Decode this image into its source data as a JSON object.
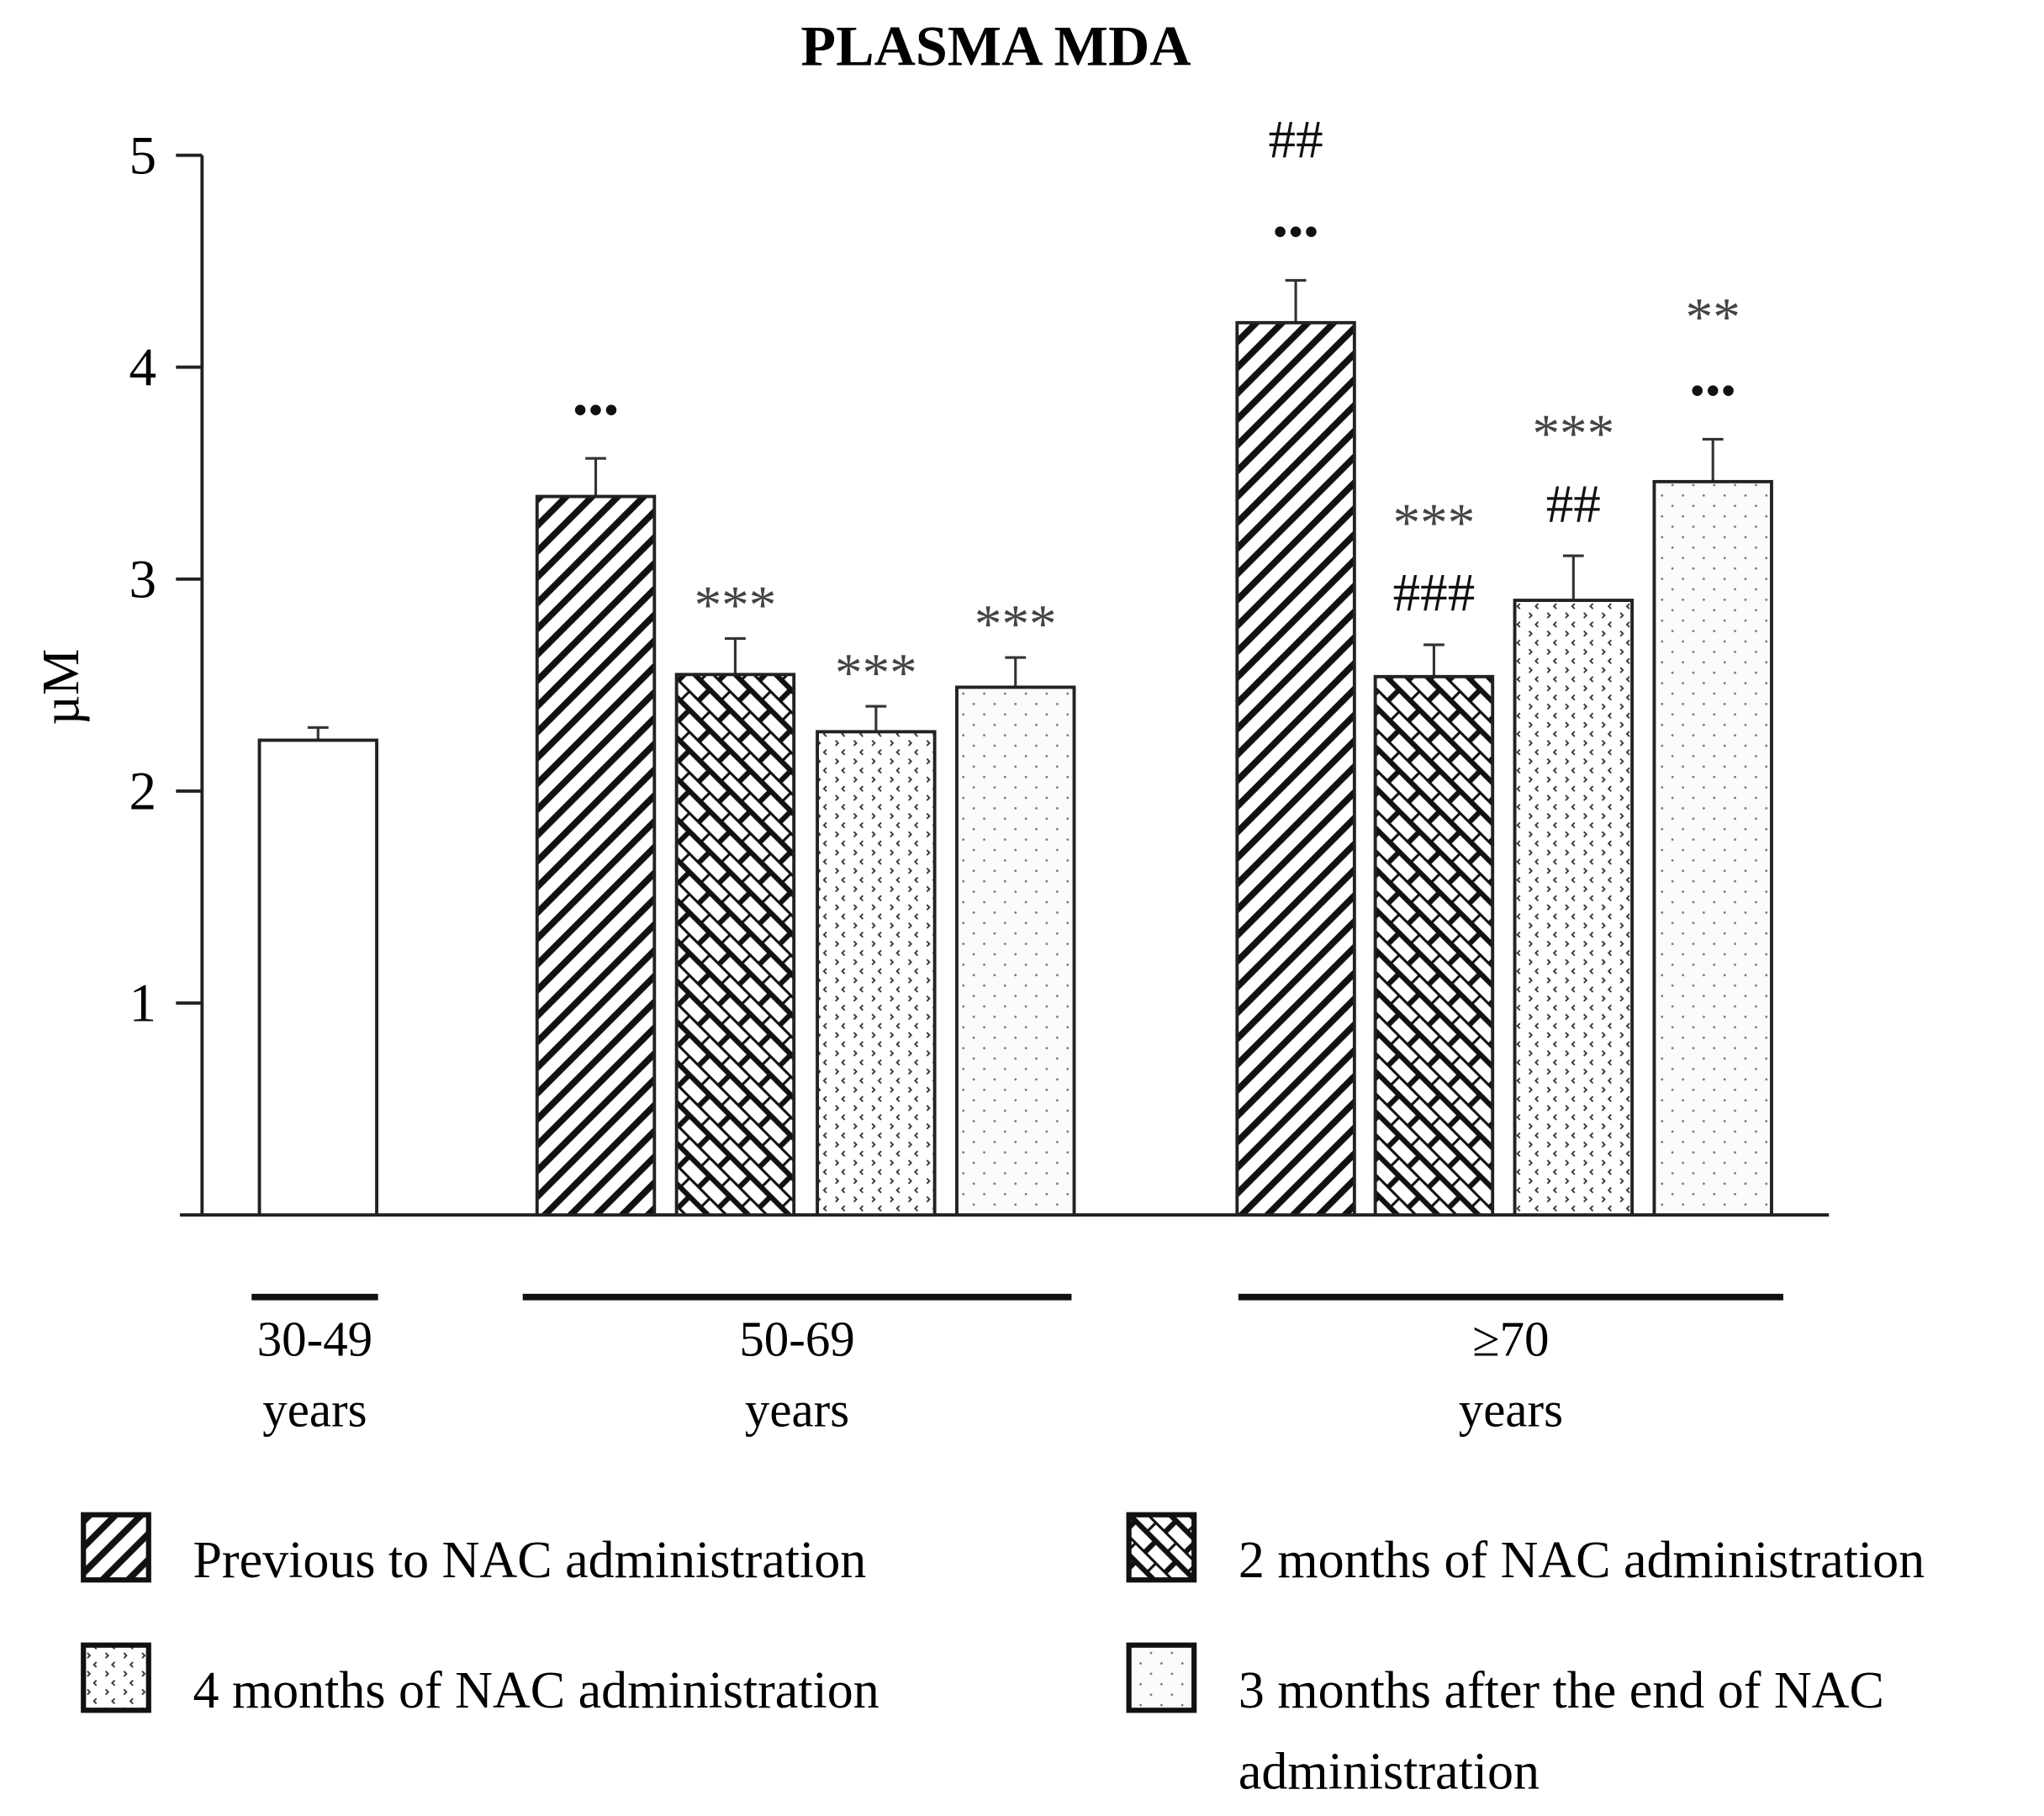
{
  "chart_data": {
    "type": "bar",
    "title": "PLASMA MDA",
    "ylabel": "µM",
    "xlabel": "",
    "ylim": [
      0,
      5
    ],
    "yticks": [
      "1",
      "2",
      "3",
      "4",
      "5"
    ],
    "groups": [
      {
        "label_line1": "30-49",
        "label_line2": "years",
        "bars": [
          {
            "series": "control",
            "value": 2.24,
            "error": 0.06,
            "annot": []
          }
        ]
      },
      {
        "label_line1": "50-69",
        "label_line2": "years",
        "bars": [
          {
            "series": "prev",
            "value": 3.39,
            "error": 0.18,
            "annot": [
              "•••"
            ]
          },
          {
            "series": "m2",
            "value": 2.55,
            "error": 0.17,
            "annot": [
              "***"
            ]
          },
          {
            "series": "m4",
            "value": 2.28,
            "error": 0.12,
            "annot": [
              "***"
            ]
          },
          {
            "series": "after",
            "value": 2.49,
            "error": 0.14,
            "annot": [
              "***"
            ]
          }
        ]
      },
      {
        "label_line1": "≥70",
        "label_line2": "years",
        "bars": [
          {
            "series": "prev",
            "value": 4.21,
            "error": 0.2,
            "annot": [
              "•••",
              "##"
            ]
          },
          {
            "series": "m2",
            "value": 2.54,
            "error": 0.15,
            "annot": [
              "###",
              "***"
            ]
          },
          {
            "series": "m4",
            "value": 2.9,
            "error": 0.21,
            "annot": [
              "##",
              "***"
            ]
          },
          {
            "series": "after",
            "value": 3.46,
            "error": 0.2,
            "annot": [
              "•••",
              "**"
            ]
          }
        ]
      }
    ],
    "legend": [
      {
        "series": "prev",
        "label": "Previous to NAC administration"
      },
      {
        "series": "m2",
        "label": "2 months of NAC administration"
      },
      {
        "series": "m4",
        "label": "4 months of NAC administration"
      },
      {
        "series": "after",
        "label": "3 months after the end of NAC",
        "label2": "administration"
      }
    ],
    "legend_position": "bottom"
  }
}
